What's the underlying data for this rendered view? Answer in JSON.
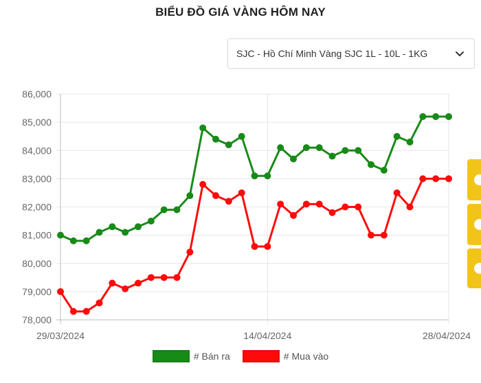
{
  "page": {
    "title": "BIỂU ĐỒ GIÁ VÀNG HÔM NAY",
    "selector": {
      "selected": "SJC - Hồ Chí Minh Vàng SJC 1L - 10L - 1KG",
      "icon": "chevron-down-icon"
    }
  },
  "colors": {
    "sell": "#188a18",
    "buy": "#ff0a0a",
    "grid": "#e6e6e6",
    "axis": "#bdbdbd",
    "tab": "#f2c31a"
  },
  "chart_data": {
    "type": "line",
    "title": "BIỂU ĐỒ GIÁ VÀNG HÔM NAY",
    "x_range": [
      "29/03/2024",
      "28/04/2024"
    ],
    "x_ticks": [
      "29/03/2024",
      "14/04/2024",
      "28/04/2024"
    ],
    "ylim": [
      78000,
      86000
    ],
    "y_ticks": [
      "78,000",
      "79,000",
      "80,000",
      "81,000",
      "82,000",
      "83,000",
      "84,000",
      "85,000",
      "86,000"
    ],
    "y_tick_values": [
      78000,
      79000,
      80000,
      81000,
      82000,
      83000,
      84000,
      85000,
      86000
    ],
    "grid": true,
    "legend_position": "bottom",
    "series": [
      {
        "name": "# Bán ra",
        "color": "#188a18",
        "values": [
          81000,
          80800,
          80800,
          81100,
          81300,
          81100,
          81300,
          81500,
          81900,
          81900,
          82400,
          84800,
          84400,
          84200,
          84500,
          83100,
          83100,
          84100,
          83700,
          84100,
          84100,
          83800,
          84000,
          84000,
          83500,
          83300,
          84500,
          84300,
          85200,
          85200,
          85200
        ]
      },
      {
        "name": "# Mua vào",
        "color": "#ff0a0a",
        "values": [
          79000,
          78300,
          78300,
          78600,
          79300,
          79100,
          79300,
          79500,
          79500,
          79500,
          80400,
          82800,
          82400,
          82200,
          82500,
          80600,
          80600,
          82100,
          81700,
          82100,
          82100,
          81800,
          82000,
          82000,
          81000,
          81000,
          82500,
          82000,
          83000,
          83000,
          83000
        ]
      }
    ]
  }
}
